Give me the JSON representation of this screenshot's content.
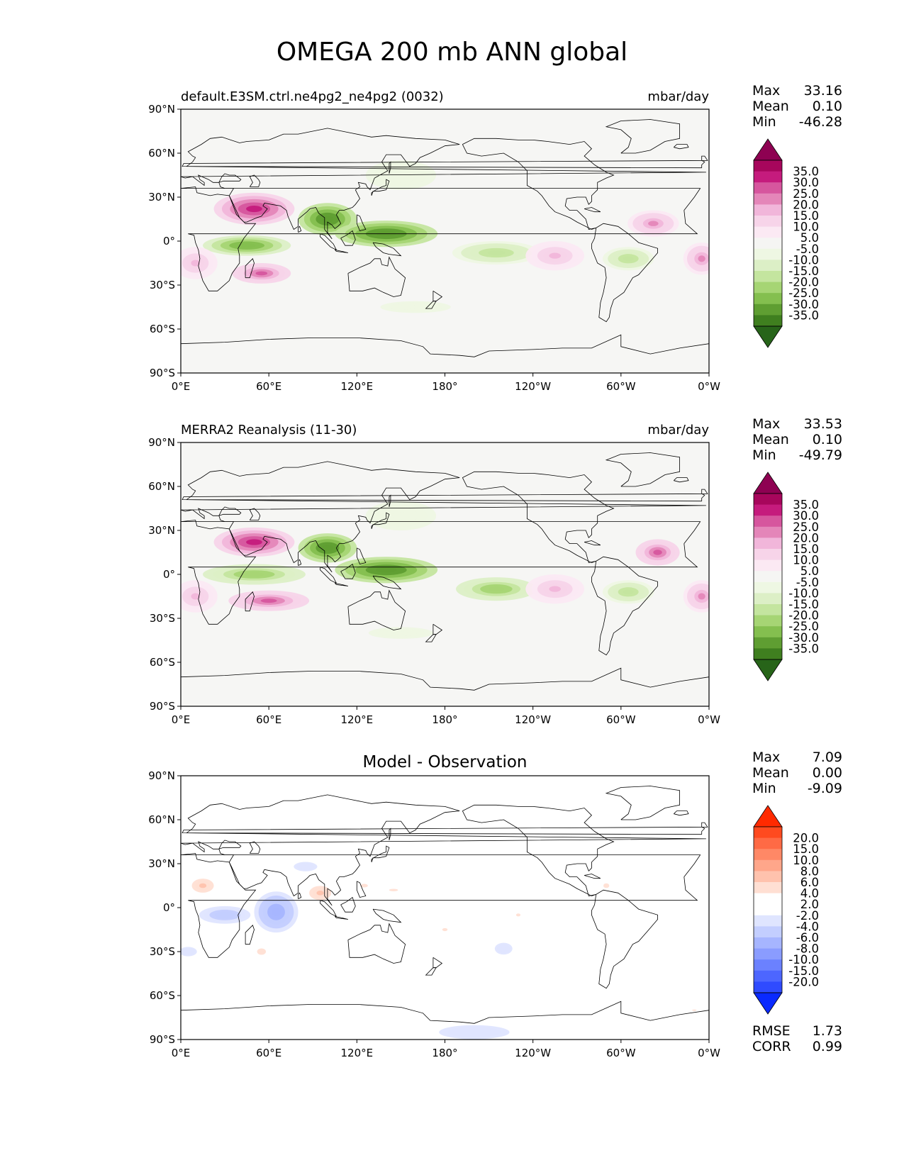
{
  "figure": {
    "title": "OMEGA 200 mb ANN global"
  },
  "axes_ticks": {
    "lon_labels": [
      "0°E",
      "60°E",
      "120°E",
      "180°",
      "120°W",
      "60°W",
      "0°W"
    ],
    "lat_labels": [
      "90°N",
      "60°N",
      "30°N",
      "0°",
      "30°S",
      "60°S",
      "90°S"
    ]
  },
  "panels": [
    {
      "left_title": "default.E3SM.ctrl.ne4pg2_ne4pg2 (0032)",
      "center_title": "",
      "right_title": "mbar/day",
      "stats": {
        "max_label": "Max",
        "max": "33.16",
        "mean_label": "Mean",
        "mean": "0.10",
        "min_label": "Min",
        "min": "-46.28"
      },
      "colorbar": {
        "tick_labels": [
          "35.0",
          "30.0",
          "25.0",
          "20.0",
          "15.0",
          "10.0",
          "5.0",
          "-5.0",
          "-10.0",
          "-15.0",
          "-20.0",
          "-25.0",
          "-30.0",
          "-35.0"
        ],
        "colors": [
          "#8e0152",
          "#a7065c",
          "#c51b7d",
          "#d6569e",
          "#e486b9",
          "#f1b6da",
          "#f7d4e9",
          "#fbe9f3",
          "#f5f5f3",
          "#eef7e3",
          "#dcefc6",
          "#c4e59f",
          "#a6d574",
          "#84bf4f",
          "#5f9e32",
          "#3f7f1f",
          "#276419"
        ]
      }
    },
    {
      "left_title": "MERRA2 Reanalysis (11-30)",
      "center_title": "",
      "right_title": "mbar/day",
      "stats": {
        "max_label": "Max",
        "max": "33.53",
        "mean_label": "Mean",
        "mean": "0.10",
        "min_label": "Min",
        "min": "-49.79"
      },
      "colorbar": {
        "tick_labels": [
          "35.0",
          "30.0",
          "25.0",
          "20.0",
          "15.0",
          "10.0",
          "5.0",
          "-5.0",
          "-10.0",
          "-15.0",
          "-20.0",
          "-25.0",
          "-30.0",
          "-35.0"
        ],
        "colors": [
          "#8e0152",
          "#a7065c",
          "#c51b7d",
          "#d6569e",
          "#e486b9",
          "#f1b6da",
          "#f7d4e9",
          "#fbe9f3",
          "#f5f5f3",
          "#eef7e3",
          "#dcefc6",
          "#c4e59f",
          "#a6d574",
          "#84bf4f",
          "#5f9e32",
          "#3f7f1f",
          "#276419"
        ]
      }
    },
    {
      "left_title": "",
      "center_title": "Model - Observation",
      "right_title": "",
      "stats": {
        "max_label": "Max",
        "max": "7.09",
        "mean_label": "Mean",
        "mean": "0.00",
        "min_label": "Min",
        "min": "-9.09"
      },
      "bottom_stats": {
        "rmse_label": "RMSE",
        "rmse": "1.73",
        "corr_label": "CORR",
        "corr": "0.99"
      },
      "colorbar": {
        "tick_labels": [
          "20.0",
          "15.0",
          "10.0",
          "8.0",
          "6.0",
          "4.0",
          "2.0",
          "-2.0",
          "-4.0",
          "-6.0",
          "-8.0",
          "-10.0",
          "-15.0",
          "-20.0"
        ],
        "colors": [
          "#ff2a00",
          "#ff4a1f",
          "#ff6a45",
          "#ff8866",
          "#ffa68a",
          "#ffc2ad",
          "#ffdfd3",
          "#ffffff",
          "#ffffff",
          "#dfe5ff",
          "#c3ceff",
          "#a6b5ff",
          "#8a9cff",
          "#6b81ff",
          "#4d66ff",
          "#2f4bff",
          "#0a2aff"
        ]
      }
    }
  ],
  "chart_data": [
    {
      "type": "heatmap",
      "title": "default.E3SM.ctrl.ne4pg2_ne4pg2 (0032)",
      "units": "mbar/day",
      "x_range": [
        "0°E",
        "0°W"
      ],
      "y_range": [
        "90°S",
        "90°N"
      ],
      "stats": {
        "max": 33.16,
        "mean": 0.1,
        "min": -46.28
      },
      "features": [
        {
          "lon": 50,
          "lat": 22,
          "value": 30,
          "lon_extent": 55,
          "lat_extent": 22
        },
        {
          "lon": 100,
          "lat": 15,
          "value": -35,
          "lon_extent": 40,
          "lat_extent": 22
        },
        {
          "lon": 140,
          "lat": 5,
          "value": -35,
          "lon_extent": 70,
          "lat_extent": 18
        },
        {
          "lon": 45,
          "lat": -3,
          "value": -30,
          "lon_extent": 60,
          "lat_extent": 14
        },
        {
          "lon": 215,
          "lat": -8,
          "value": -20,
          "lon_extent": 60,
          "lat_extent": 16
        },
        {
          "lon": 55,
          "lat": -22,
          "value": 25,
          "lon_extent": 40,
          "lat_extent": 14
        },
        {
          "lon": 10,
          "lat": -15,
          "value": 15,
          "lon_extent": 30,
          "lat_extent": 22
        },
        {
          "lon": 255,
          "lat": -10,
          "value": 15,
          "lon_extent": 40,
          "lat_extent": 20
        },
        {
          "lon": 305,
          "lat": -12,
          "value": -20,
          "lon_extent": 35,
          "lat_extent": 16
        },
        {
          "lon": 355,
          "lat": -12,
          "value": 20,
          "lon_extent": 25,
          "lat_extent": 22
        },
        {
          "lon": 322,
          "lat": 12,
          "value": 20,
          "lon_extent": 35,
          "lat_extent": 18
        },
        {
          "lon": 160,
          "lat": -45,
          "value": -10,
          "lon_extent": 60,
          "lat_extent": 10
        },
        {
          "lon": 150,
          "lat": 45,
          "value": -10,
          "lon_extent": 60,
          "lat_extent": 25
        }
      ]
    },
    {
      "type": "heatmap",
      "title": "MERRA2 Reanalysis (11-30)",
      "units": "mbar/day",
      "x_range": [
        "0°E",
        "0°W"
      ],
      "y_range": [
        "90°S",
        "90°N"
      ],
      "stats": {
        "max": 33.53,
        "mean": 0.1,
        "min": -49.79
      },
      "features": [
        {
          "lon": 50,
          "lat": 22,
          "value": 30,
          "lon_extent": 55,
          "lat_extent": 20
        },
        {
          "lon": 100,
          "lat": 18,
          "value": -35,
          "lon_extent": 40,
          "lat_extent": 20
        },
        {
          "lon": 140,
          "lat": 3,
          "value": -35,
          "lon_extent": 70,
          "lat_extent": 18
        },
        {
          "lon": 50,
          "lat": 0,
          "value": -25,
          "lon_extent": 70,
          "lat_extent": 14
        },
        {
          "lon": 215,
          "lat": -10,
          "value": -25,
          "lon_extent": 55,
          "lat_extent": 16
        },
        {
          "lon": 60,
          "lat": -18,
          "value": 25,
          "lon_extent": 55,
          "lat_extent": 14
        },
        {
          "lon": 10,
          "lat": -15,
          "value": 15,
          "lon_extent": 30,
          "lat_extent": 22
        },
        {
          "lon": 255,
          "lat": -10,
          "value": 15,
          "lon_extent": 40,
          "lat_extent": 20
        },
        {
          "lon": 305,
          "lat": -12,
          "value": -20,
          "lon_extent": 35,
          "lat_extent": 16
        },
        {
          "lon": 355,
          "lat": -15,
          "value": 20,
          "lon_extent": 25,
          "lat_extent": 22
        },
        {
          "lon": 325,
          "lat": 15,
          "value": 25,
          "lon_extent": 30,
          "lat_extent": 18
        },
        {
          "lon": 150,
          "lat": -40,
          "value": -10,
          "lon_extent": 55,
          "lat_extent": 10
        },
        {
          "lon": 150,
          "lat": 40,
          "value": -10,
          "lon_extent": 60,
          "lat_extent": 25
        }
      ]
    },
    {
      "type": "heatmap",
      "title": "Model - Observation",
      "units": "mbar/day",
      "x_range": [
        "0°E",
        "0°W"
      ],
      "y_range": [
        "90°S",
        "90°N"
      ],
      "stats": {
        "max": 7.09,
        "mean": 0.0,
        "min": -9.09,
        "rmse": 1.73,
        "corr": 0.99
      },
      "features": [
        {
          "lon": 15,
          "lat": 15,
          "value": 6,
          "lon_extent": 25,
          "lat_extent": 16
        },
        {
          "lon": 30,
          "lat": -5,
          "value": -6,
          "lon_extent": 35,
          "lat_extent": 12
        },
        {
          "lon": 65,
          "lat": -3,
          "value": -8,
          "lon_extent": 30,
          "lat_extent": 28
        },
        {
          "lon": 95,
          "lat": 10,
          "value": 6,
          "lon_extent": 25,
          "lat_extent": 16
        },
        {
          "lon": 125,
          "lat": 15,
          "value": 4,
          "lon_extent": 25,
          "lat_extent": 12
        },
        {
          "lon": 145,
          "lat": 12,
          "value": 4,
          "lon_extent": 30,
          "lat_extent": 8
        },
        {
          "lon": 55,
          "lat": -30,
          "value": 4,
          "lon_extent": 30,
          "lat_extent": 22
        },
        {
          "lon": 180,
          "lat": -15,
          "value": 4,
          "lon_extent": 18,
          "lat_extent": 10
        },
        {
          "lon": 230,
          "lat": -5,
          "value": 4,
          "lon_extent": 15,
          "lat_extent": 10
        },
        {
          "lon": 220,
          "lat": -28,
          "value": -4,
          "lon_extent": 15,
          "lat_extent": 10
        },
        {
          "lon": 290,
          "lat": 15,
          "value": 4,
          "lon_extent": 20,
          "lat_extent": 16
        },
        {
          "lon": 85,
          "lat": 28,
          "value": -4,
          "lon_extent": 20,
          "lat_extent": 8
        },
        {
          "lon": 5,
          "lat": -30,
          "value": -4,
          "lon_extent": 15,
          "lat_extent": 8
        },
        {
          "lon": 200,
          "lat": -85,
          "value": -4,
          "lon_extent": 60,
          "lat_extent": 12
        },
        {
          "lon": 350,
          "lat": -70,
          "value": 4,
          "lon_extent": 15,
          "lat_extent": 5
        }
      ]
    }
  ]
}
